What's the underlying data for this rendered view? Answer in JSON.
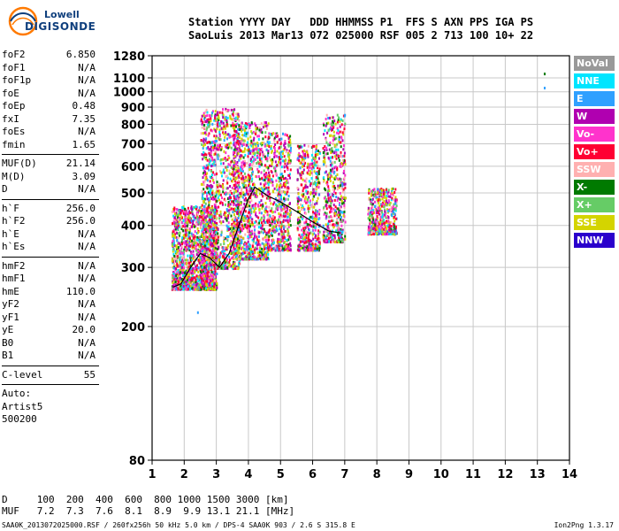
{
  "logo": {
    "line1": "Lowell",
    "line2": "DIGISONDE"
  },
  "header": {
    "line1": "Station YYYY DAY   DDD HHMMSS P1  FFS S AXN PPS IGA PS",
    "line2": "SaoLuis 2013 Mar13 072 025000 RSF 005 2 713 100 10+ 22"
  },
  "params": {
    "group1": [
      {
        "k": "foF2",
        "v": "6.850"
      },
      {
        "k": "foF1",
        "v": "N/A"
      },
      {
        "k": "foF1p",
        "v": "N/A"
      },
      {
        "k": "foE",
        "v": "N/A"
      },
      {
        "k": "foEp",
        "v": "0.48"
      },
      {
        "k": "fxI",
        "v": "7.35"
      },
      {
        "k": "foEs",
        "v": "N/A"
      },
      {
        "k": "fmin",
        "v": "1.65"
      }
    ],
    "group2": [
      {
        "k": "MUF(D)",
        "v": "21.14"
      },
      {
        "k": "M(D)",
        "v": "3.09"
      },
      {
        "k": "D",
        "v": "N/A"
      }
    ],
    "group3": [
      {
        "k": "h`F",
        "v": "256.0"
      },
      {
        "k": "h`F2",
        "v": "256.0"
      },
      {
        "k": "h`E",
        "v": "N/A"
      },
      {
        "k": "h`Es",
        "v": "N/A"
      }
    ],
    "group4": [
      {
        "k": "hmF2",
        "v": "N/A"
      },
      {
        "k": "hmF1",
        "v": "N/A"
      },
      {
        "k": "hmE",
        "v": "110.0"
      },
      {
        "k": "yF2",
        "v": "N/A"
      },
      {
        "k": "yF1",
        "v": "N/A"
      },
      {
        "k": "yE",
        "v": "20.0"
      },
      {
        "k": "B0",
        "v": "N/A"
      },
      {
        "k": "B1",
        "v": "N/A"
      }
    ],
    "group5": [
      {
        "k": "C-level",
        "v": "55"
      }
    ],
    "auto": [
      "Auto:",
      "Artist5",
      "500200"
    ]
  },
  "legend": [
    {
      "label": "NoVal",
      "color": "#999999"
    },
    {
      "label": "NNE",
      "color": "#00e5ff"
    },
    {
      "label": "E",
      "color": "#2fa0ff"
    },
    {
      "label": "W",
      "color": "#b000b0"
    },
    {
      "label": "Vo-",
      "color": "#ff33cc"
    },
    {
      "label": "Vo+",
      "color": "#ff0033"
    },
    {
      "label": "SSW",
      "color": "#ffb0b0"
    },
    {
      "label": "X-",
      "color": "#007a00"
    },
    {
      "label": "X+",
      "color": "#66cc66"
    },
    {
      "label": "SSE",
      "color": "#d4d400"
    },
    {
      "label": "NNW",
      "color": "#2a00cc"
    }
  ],
  "bottom": {
    "line1": "D     100  200  400  600  800 1000 1500 3000 [km]",
    "line2": "MUF   7.2  7.3  7.6  8.1  8.9  9.9 13.1 21.1 [MHz]"
  },
  "footer": {
    "left": "SAA0K_2013072025000.RSF / 260fx256h 50 kHz 5.0 km / DPS-4 SAA0K 903 / 2.6 S 315.8 E",
    "right": "Ion2Png 1.3.17"
  },
  "chart_data": {
    "type": "scatter",
    "xlim": [
      1,
      14
    ],
    "ylim": [
      80,
      1280
    ],
    "y_scale": "log",
    "x_ticks": [
      1,
      2,
      3,
      4,
      5,
      6,
      7,
      8,
      9,
      10,
      11,
      12,
      13,
      14
    ],
    "y_ticks": [
      80,
      200,
      300,
      400,
      500,
      600,
      700,
      800,
      900,
      1000,
      1100,
      1280
    ],
    "grid": true,
    "trace": {
      "name": "",
      "x": [
        1.65,
        1.9,
        2.2,
        2.5,
        2.8,
        3.1,
        3.4,
        3.7,
        4.0,
        4.2,
        4.6,
        5.0,
        5.5,
        6.0,
        6.5,
        6.85
      ],
      "y": [
        262,
        268,
        300,
        330,
        320,
        300,
        330,
        400,
        480,
        520,
        490,
        470,
        440,
        410,
        385,
        380
      ]
    },
    "clusters": [
      {
        "x": [
          1.6,
          3.0
        ],
        "y": [
          260,
          460
        ],
        "weight": 3
      },
      {
        "x": [
          2.5,
          3.7
        ],
        "y": [
          300,
          900
        ],
        "weight": 2
      },
      {
        "x": [
          3.5,
          4.6
        ],
        "y": [
          320,
          820
        ],
        "weight": 2
      },
      {
        "x": [
          4.6,
          5.3
        ],
        "y": [
          340,
          760
        ],
        "weight": 1
      },
      {
        "x": [
          5.5,
          6.2
        ],
        "y": [
          340,
          700
        ],
        "weight": 1
      },
      {
        "x": [
          6.3,
          7.0
        ],
        "y": [
          360,
          860
        ],
        "weight": 1
      },
      {
        "x": [
          7.7,
          8.6
        ],
        "y": [
          380,
          520
        ],
        "weight": 1
      }
    ],
    "isolated_points": [
      {
        "x": 13.2,
        "y": 1140
      },
      {
        "x": 13.2,
        "y": 1035
      },
      {
        "x": 2.4,
        "y": 222
      }
    ]
  }
}
